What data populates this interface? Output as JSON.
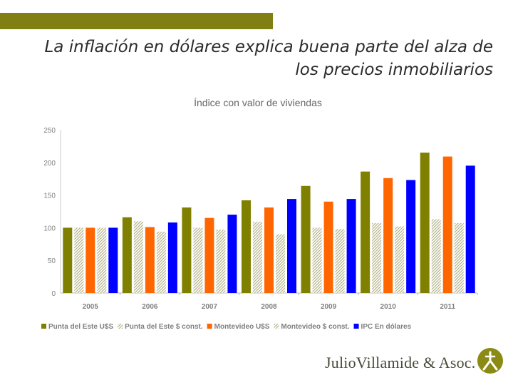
{
  "slide": {
    "title_line1": "La inflación en dólares explica buena parte del alza de",
    "title_line2": "los precios inmobiliarios"
  },
  "brand": {
    "name": "JulioVillamide & Asoc.",
    "logo_icon": "jva-monogram-icon",
    "logo_color": "#8a8a14"
  },
  "chart_data": {
    "type": "bar",
    "title": "Índice con valor de viviendas",
    "xlabel": "",
    "ylabel": "",
    "ylim": [
      0,
      250
    ],
    "yticks": [
      0,
      50,
      100,
      150,
      200,
      250
    ],
    "categories": [
      "2005",
      "2006",
      "2007",
      "2008",
      "2009",
      "2010",
      "2011"
    ],
    "series": [
      {
        "name": "Punta del Este U$S",
        "color": "#808000",
        "pattern": "solid",
        "values": [
          100,
          116,
          131,
          142,
          164,
          186,
          215
        ]
      },
      {
        "name": "Punta del Este $ const.",
        "color": "#c8c89a",
        "pattern": "hatch",
        "values": [
          100,
          110,
          100,
          109,
          100,
          107,
          113
        ]
      },
      {
        "name": "Montevideo U$S",
        "color": "#ff6600",
        "pattern": "solid",
        "values": [
          100,
          101,
          115,
          131,
          140,
          176,
          209
        ]
      },
      {
        "name": "Montevideo $ const.",
        "color": "#c8c89a",
        "pattern": "hatch",
        "values": [
          100,
          94,
          97,
          90,
          98,
          102,
          107
        ]
      },
      {
        "name": "IPC En dólares",
        "color": "#0000ff",
        "pattern": "solid",
        "values": [
          100,
          108,
          120,
          144,
          144,
          173,
          195
        ]
      }
    ],
    "legend_position": "bottom",
    "grid": false
  }
}
